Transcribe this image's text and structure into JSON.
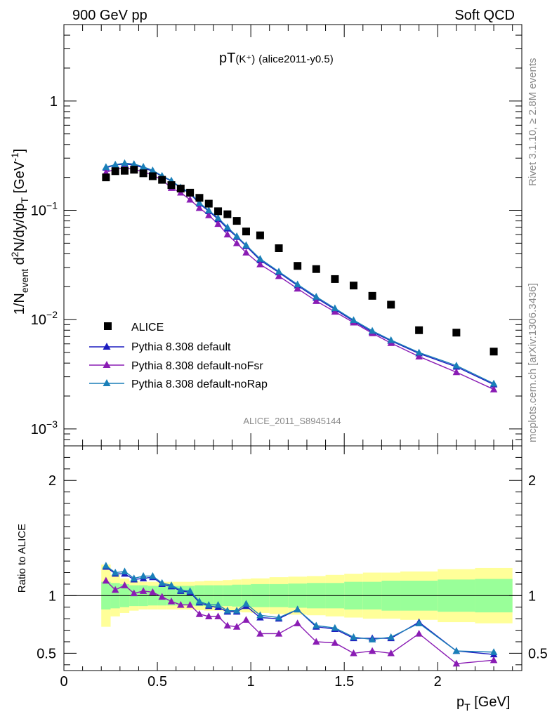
{
  "header": {
    "left": "900 GeV pp",
    "right": "Soft QCD"
  },
  "side_text": {
    "rivet": "Rivet 3.1.10, ≥ 2.8M events",
    "mcplots": "mcplots.cern.ch [arXiv:1306.3436]"
  },
  "chart_data": [
    {
      "type": "scatter",
      "panel": "main",
      "title_main": "pT",
      "title_particle": "(K⁺)",
      "title_tag": "(alice2011-y0.5)",
      "watermark": "ALICE_2011_S8945144",
      "ylabel": "1/N_event d²N/dy/dp_T [GeV⁻¹]",
      "yscale": "log",
      "ylim": [
        0.0007,
        5
      ],
      "xlim": [
        0,
        2.45
      ],
      "y_ticks": [
        {
          "value": 0.001,
          "base": "10",
          "exp": "−3"
        },
        {
          "value": 0.01,
          "base": "10",
          "exp": "−2"
        },
        {
          "value": 0.1,
          "base": "10",
          "exp": "−1"
        },
        {
          "value": 1,
          "base": "1",
          "exp": ""
        }
      ],
      "legend": [
        "ALICE",
        "Pythia 8.308 default",
        "Pythia 8.308 default-noFsr",
        "Pythia 8.308 default-noRap"
      ],
      "data": {
        "name": "ALICE",
        "color": "#000000",
        "x": [
          0.225,
          0.275,
          0.325,
          0.375,
          0.425,
          0.475,
          0.525,
          0.575,
          0.625,
          0.675,
          0.725,
          0.775,
          0.825,
          0.875,
          0.925,
          0.975,
          1.05,
          1.15,
          1.25,
          1.35,
          1.45,
          1.55,
          1.65,
          1.75,
          1.9,
          2.1,
          2.3
        ],
        "y": [
          0.2,
          0.228,
          0.23,
          0.235,
          0.218,
          0.205,
          0.19,
          0.17,
          0.158,
          0.145,
          0.13,
          0.115,
          0.098,
          0.092,
          0.08,
          0.064,
          0.059,
          0.045,
          0.031,
          0.029,
          0.0235,
          0.0205,
          0.0165,
          0.0137,
          0.008,
          0.0076,
          0.0051
        ]
      },
      "series": [
        {
          "name": "Pythia 8.308 default",
          "color": "#1d1dbf",
          "y": [
            0.245,
            0.26,
            0.265,
            0.26,
            0.245,
            0.228,
            0.205,
            0.185,
            0.16,
            0.142,
            0.115,
            0.098,
            0.083,
            0.068,
            0.057,
            0.047,
            0.035,
            0.027,
            0.0205,
            0.0158,
            0.0124,
            0.0097,
            0.0077,
            0.0064,
            0.0049,
            0.0037,
            0.00255
          ]
        },
        {
          "name": "Pythia 8.308 default-noFsr",
          "color": "#8a1cb4",
          "y": [
            0.222,
            0.238,
            0.245,
            0.237,
            0.225,
            0.21,
            0.19,
            0.16,
            0.145,
            0.125,
            0.105,
            0.09,
            0.075,
            0.06,
            0.05,
            0.041,
            0.032,
            0.025,
            0.0192,
            0.0148,
            0.0118,
            0.0094,
            0.0075,
            0.0061,
            0.0046,
            0.0033,
            0.0023
          ]
        },
        {
          "name": "Pythia 8.308 default-noRap",
          "color": "#1a7fb8",
          "y": [
            0.249,
            0.262,
            0.27,
            0.265,
            0.25,
            0.232,
            0.207,
            0.187,
            0.162,
            0.145,
            0.117,
            0.1,
            0.085,
            0.07,
            0.058,
            0.048,
            0.036,
            0.0275,
            0.021,
            0.0162,
            0.0127,
            0.0099,
            0.0079,
            0.0065,
            0.005,
            0.0038,
            0.0026
          ]
        }
      ]
    },
    {
      "type": "line",
      "panel": "ratio",
      "ylabel": "Ratio to ALICE",
      "xlabel": "p_T [GeV]",
      "ylim": [
        0.35,
        2.3
      ],
      "xlim": [
        0,
        2.45
      ],
      "x_ticks": [
        "0",
        "0.5",
        "1",
        "1.5",
        "2"
      ],
      "x_tick_values": [
        0,
        0.5,
        1,
        1.5,
        2
      ],
      "y_ticks": [
        "0.5",
        "1",
        "2"
      ],
      "y_tick_values": [
        0.5,
        1,
        2
      ],
      "bins": [
        [
          0.2,
          0.25
        ],
        [
          0.25,
          0.3
        ],
        [
          0.3,
          0.35
        ],
        [
          0.35,
          0.4
        ],
        [
          0.4,
          0.45
        ],
        [
          0.45,
          0.5
        ],
        [
          0.5,
          0.55
        ],
        [
          0.55,
          0.6
        ],
        [
          0.6,
          0.65
        ],
        [
          0.65,
          0.7
        ],
        [
          0.7,
          0.75
        ],
        [
          0.75,
          0.8
        ],
        [
          0.8,
          0.85
        ],
        [
          0.85,
          0.9
        ],
        [
          0.9,
          0.95
        ],
        [
          0.95,
          1.0
        ],
        [
          1.0,
          1.1
        ],
        [
          1.1,
          1.2
        ],
        [
          1.2,
          1.3
        ],
        [
          1.3,
          1.4
        ],
        [
          1.4,
          1.5
        ],
        [
          1.5,
          1.6
        ],
        [
          1.6,
          1.7
        ],
        [
          1.7,
          1.8
        ],
        [
          1.8,
          2.0
        ],
        [
          2.0,
          2.2
        ],
        [
          2.2,
          2.4
        ]
      ],
      "band_stat": [
        0.12,
        0.11,
        0.1,
        0.09,
        0.09,
        0.085,
        0.085,
        0.085,
        0.085,
        0.085,
        0.09,
        0.09,
        0.09,
        0.09,
        0.095,
        0.095,
        0.1,
        0.1,
        0.105,
        0.11,
        0.11,
        0.12,
        0.12,
        0.13,
        0.13,
        0.14,
        0.145
      ],
      "band_syst": [
        0.27,
        0.18,
        0.15,
        0.13,
        0.12,
        0.12,
        0.12,
        0.12,
        0.12,
        0.12,
        0.125,
        0.13,
        0.13,
        0.135,
        0.14,
        0.145,
        0.15,
        0.16,
        0.165,
        0.17,
        0.18,
        0.19,
        0.2,
        0.2,
        0.21,
        0.23,
        0.24
      ],
      "band_colors": {
        "stat": "#99ff99",
        "syst": "#ffff99"
      },
      "series": [
        {
          "name": "Pythia 8.308 default",
          "color": "#1d1dbf",
          "y": [
            1.25,
            1.19,
            1.19,
            1.14,
            1.15,
            1.16,
            1.1,
            1.08,
            1.04,
            1.03,
            0.94,
            0.91,
            0.9,
            0.86,
            0.86,
            0.91,
            0.81,
            0.8,
            0.88,
            0.73,
            0.71,
            0.63,
            0.63,
            0.63,
            0.77,
            0.52,
            0.49
          ]
        },
        {
          "name": "Pythia 8.308 default-noFsr",
          "color": "#8a1cb4",
          "y": [
            1.13,
            1.05,
            1.09,
            1.02,
            1.04,
            1.03,
            0.99,
            0.95,
            0.92,
            0.92,
            0.84,
            0.82,
            0.82,
            0.74,
            0.73,
            0.79,
            0.67,
            0.67,
            0.76,
            0.6,
            0.59,
            0.5,
            0.52,
            0.5,
            0.67,
            0.41,
            0.44
          ]
        },
        {
          "name": "Pythia 8.308 default-noRap",
          "color": "#1a7fb8",
          "y": [
            1.26,
            1.2,
            1.21,
            1.15,
            1.17,
            1.17,
            1.11,
            1.09,
            1.05,
            1.04,
            0.95,
            0.92,
            0.92,
            0.87,
            0.87,
            0.93,
            0.83,
            0.81,
            0.88,
            0.74,
            0.72,
            0.64,
            0.62,
            0.64,
            0.76,
            0.52,
            0.51
          ]
        }
      ]
    }
  ]
}
